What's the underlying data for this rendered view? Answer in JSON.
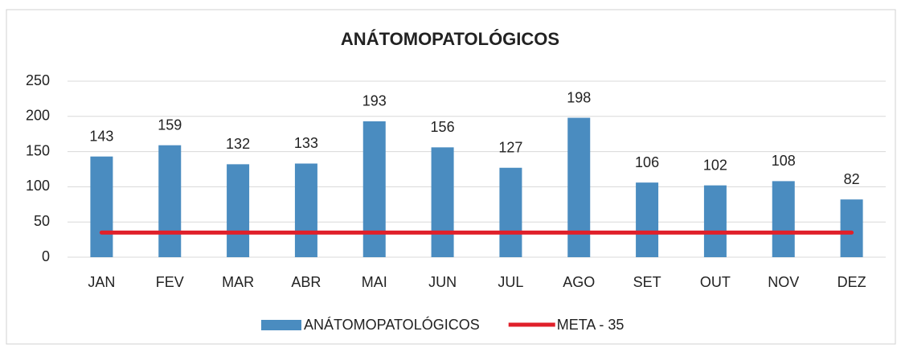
{
  "chart_data": {
    "type": "bar",
    "title": "ANÁTOMOPATOLÓGICOS",
    "categories": [
      "JAN",
      "FEV",
      "MAR",
      "ABR",
      "MAI",
      "JUN",
      "JUL",
      "AGO",
      "SET",
      "OUT",
      "NOV",
      "DEZ"
    ],
    "series": [
      {
        "name": "ANÁTOMOPATOLÓGICOS",
        "color": "#4a8cc0",
        "type": "bar",
        "values": [
          143,
          159,
          132,
          133,
          193,
          156,
          127,
          198,
          106,
          102,
          108,
          82
        ]
      },
      {
        "name": "META - 35",
        "color": "#e0202a",
        "type": "line",
        "values": [
          35,
          35,
          35,
          35,
          35,
          35,
          35,
          35,
          35,
          35,
          35,
          35
        ]
      }
    ],
    "ylim": [
      0,
      250
    ],
    "yticks": [
      0,
      50,
      100,
      150,
      200,
      250
    ],
    "grid": true,
    "legend": "bottom"
  }
}
